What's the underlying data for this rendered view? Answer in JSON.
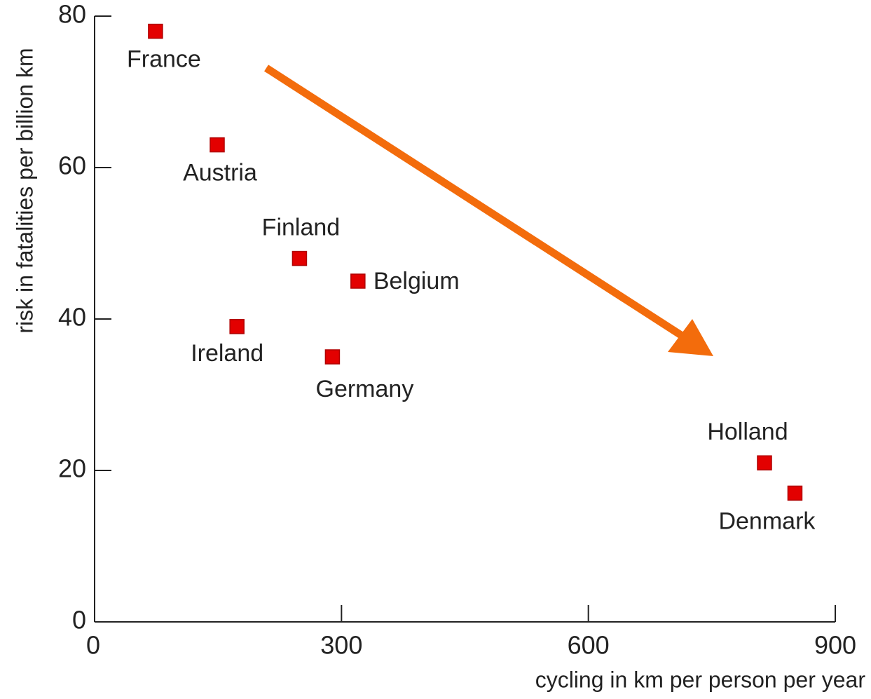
{
  "chart_data": {
    "type": "scatter",
    "xlabel": "cycling in km per person per year",
    "ylabel": "risk in fatalities per billion km",
    "labels": [
      "France",
      "Austria",
      "Finland",
      "Belgium",
      "Ireland",
      "Germany",
      "Holland",
      "Denmark"
    ],
    "x": [
      74,
      149,
      249,
      320,
      173,
      289,
      814,
      851
    ],
    "series": [
      {
        "color": "#e30000",
        "values": [
          78,
          63,
          48,
          45,
          39,
          35,
          21,
          17
        ]
      }
    ],
    "xlim": [
      0,
      900
    ],
    "xticks": [
      0,
      300,
      600,
      900
    ],
    "ylim": [
      0,
      80
    ],
    "yticks": [
      0,
      20,
      40,
      60,
      80
    ],
    "grid": false
  }
}
